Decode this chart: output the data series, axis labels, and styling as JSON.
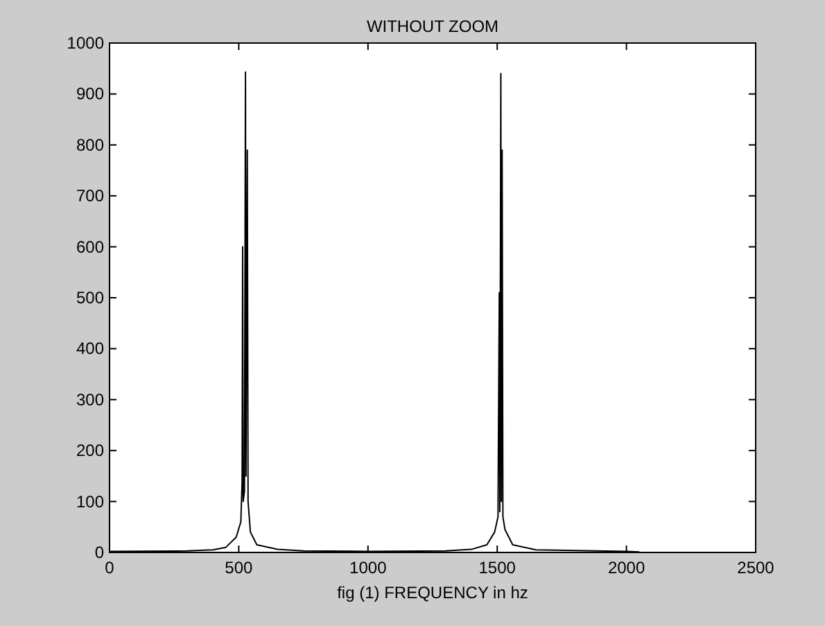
{
  "chart_data": {
    "type": "line",
    "title": "WITHOUT ZOOM",
    "xlabel": "fig (1)  FREQUENCY in hz",
    "x": [
      0,
      300,
      400,
      450,
      490,
      508,
      513,
      515,
      517,
      522,
      526,
      528,
      533,
      536,
      545,
      570,
      650,
      750,
      1000,
      1300,
      1400,
      1460,
      1490,
      1503,
      1508,
      1510,
      1514,
      1516,
      1519,
      1522,
      1530,
      1560,
      1650,
      2000,
      2050
    ],
    "series": [
      {
        "color": "#000000",
        "values": [
          2,
          3,
          5,
          10,
          30,
          60,
          140,
          600,
          100,
          120,
          943,
          150,
          790,
          100,
          40,
          15,
          6,
          3,
          2,
          3,
          6,
          15,
          40,
          70,
          510,
          80,
          940,
          100,
          790,
          70,
          45,
          15,
          5,
          2,
          1
        ]
      }
    ],
    "xlim": [
      0,
      2500
    ],
    "xticks": [
      0,
      500,
      1000,
      1500,
      2000,
      2500
    ],
    "ylim": [
      0,
      1000
    ],
    "yticks": [
      0,
      100,
      200,
      300,
      400,
      500,
      600,
      700,
      800,
      900,
      1000
    ],
    "grid": false
  }
}
